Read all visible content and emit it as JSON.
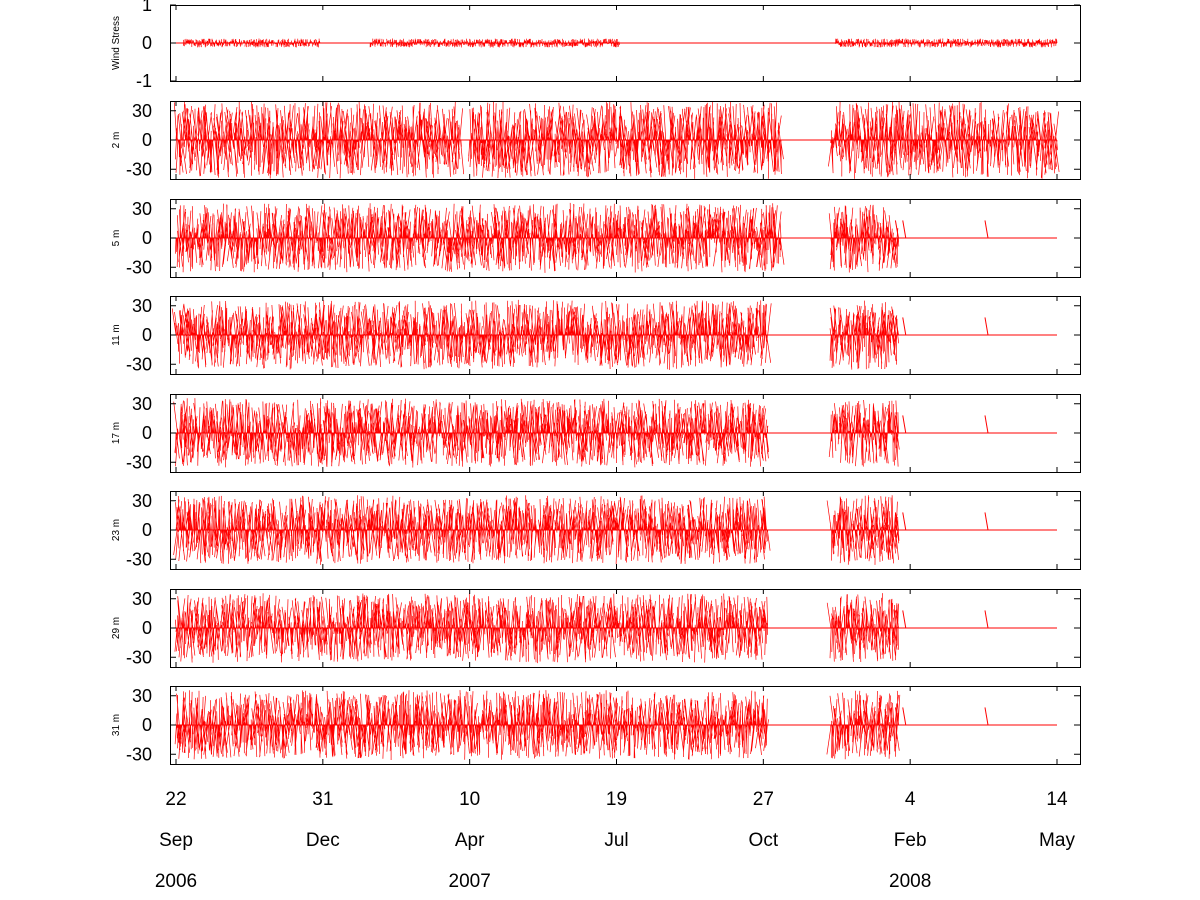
{
  "chart_data": {
    "type": "line",
    "description_style": "stick plots (current/wind vectors), one panel per depth",
    "colors": {
      "stick": "#ff0000",
      "axes": "#000000",
      "background": "#ffffff"
    },
    "x_axis": {
      "start": "2006-09-22",
      "end": "2008-05-14",
      "day_labels": [
        "22",
        "31",
        "10",
        "19",
        "27",
        "4",
        "14"
      ],
      "month_labels": [
        "Sep",
        "Dec",
        "Apr",
        "Jul",
        "Oct",
        "Feb",
        "May"
      ],
      "tick_dates": [
        "2006-09-22",
        "2006-12-31",
        "2007-04-10",
        "2007-07-19",
        "2007-10-27",
        "2008-02-04",
        "2008-05-14"
      ],
      "year_labels": [
        {
          "text": "2006",
          "date": "2006-09-22"
        },
        {
          "text": "2007",
          "date": "2007-04-10"
        },
        {
          "text": "2008",
          "date": "2008-02-04"
        }
      ]
    },
    "panels": [
      {
        "name": "Wind Stress",
        "ylabel": "Wind Stress",
        "ylim": [
          -1,
          1
        ],
        "yticks": [
          "1",
          "0",
          "-1"
        ],
        "amplitude": 0.12,
        "segments": [
          [
            "2006-09-27",
            "2006-12-29"
          ],
          [
            "2007-02-01",
            "2007-07-21"
          ],
          [
            "2007-12-15",
            "2008-05-14"
          ]
        ]
      },
      {
        "name": "2 m",
        "ylabel": "2 m",
        "ylim": [
          -40,
          40
        ],
        "yticks": [
          "30",
          "0",
          "-30"
        ],
        "amplitude": 40,
        "segments": [
          [
            "2006-09-22",
            "2007-04-04"
          ],
          [
            "2007-04-10",
            "2007-08-20"
          ],
          [
            "2007-08-20",
            "2007-11-08"
          ],
          [
            "2007-12-12",
            "2008-05-14"
          ]
        ]
      },
      {
        "name": "5 m",
        "ylabel": "5 m",
        "ylim": [
          -40,
          40
        ],
        "yticks": [
          "30",
          "0",
          "-30"
        ],
        "amplitude": 36,
        "segments": [
          [
            "2006-09-22",
            "2007-08-20"
          ],
          [
            "2007-08-20",
            "2007-11-08"
          ],
          [
            "2007-12-12",
            "2008-01-27"
          ]
        ],
        "markers": [
          "2008-01-27",
          "2008-02-01",
          "2008-03-28"
        ]
      },
      {
        "name": "11 m",
        "ylabel": "11 m",
        "ylim": [
          -40,
          40
        ],
        "yticks": [
          "30",
          "0",
          "-30"
        ],
        "amplitude": 36,
        "segments": [
          [
            "2006-09-22",
            "2007-10-30"
          ],
          [
            "2007-12-12",
            "2008-01-27"
          ]
        ],
        "markers": [
          "2008-01-27",
          "2008-02-01",
          "2008-03-28"
        ]
      },
      {
        "name": "17 m",
        "ylabel": "17 m",
        "ylim": [
          -40,
          40
        ],
        "yticks": [
          "30",
          "0",
          "-30"
        ],
        "amplitude": 36,
        "segments": [
          [
            "2006-09-22",
            "2007-10-30"
          ],
          [
            "2007-12-12",
            "2008-01-27"
          ]
        ],
        "markers": [
          "2008-01-27",
          "2008-02-01",
          "2008-03-28"
        ]
      },
      {
        "name": "23 m",
        "ylabel": "23 m",
        "ylim": [
          -40,
          40
        ],
        "yticks": [
          "30",
          "0",
          "-30"
        ],
        "amplitude": 36,
        "segments": [
          [
            "2006-09-22",
            "2007-10-30"
          ],
          [
            "2007-12-12",
            "2008-01-27"
          ]
        ],
        "markers": [
          "2008-01-27",
          "2008-02-01",
          "2008-03-28"
        ]
      },
      {
        "name": "29 m",
        "ylabel": "29 m",
        "ylim": [
          -40,
          40
        ],
        "yticks": [
          "30",
          "0",
          "-30"
        ],
        "amplitude": 36,
        "segments": [
          [
            "2006-09-22",
            "2007-10-30"
          ],
          [
            "2007-12-12",
            "2008-01-27"
          ]
        ],
        "markers": [
          "2008-01-27",
          "2008-02-01",
          "2008-03-28"
        ]
      },
      {
        "name": "31 m",
        "ylabel": "31 m",
        "ylim": [
          -40,
          40
        ],
        "yticks": [
          "30",
          "0",
          "-30"
        ],
        "amplitude": 36,
        "segments": [
          [
            "2006-09-22",
            "2007-10-30"
          ],
          [
            "2007-12-12",
            "2008-01-27"
          ]
        ],
        "markers": [
          "2008-01-27",
          "2008-02-01",
          "2008-03-28"
        ]
      }
    ]
  }
}
